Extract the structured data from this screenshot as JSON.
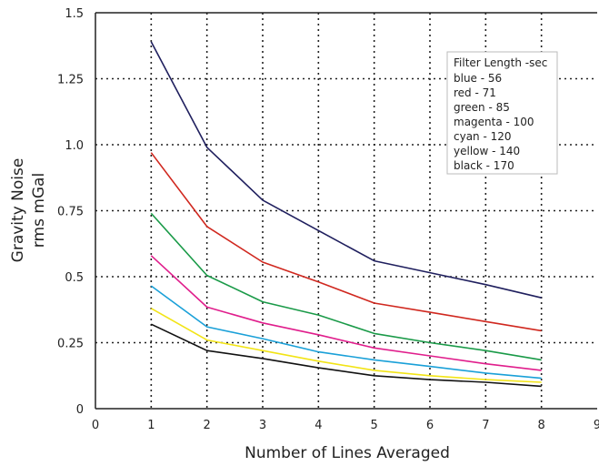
{
  "chart_data": {
    "type": "line",
    "title": "",
    "xlabel": "Number of Lines Averaged",
    "ylabel_line1": "Gravity Noise",
    "ylabel_line2": "rms mGal",
    "xlim": [
      0,
      9
    ],
    "ylim": [
      0,
      1.5
    ],
    "x_ticks": [
      "0",
      "1",
      "2",
      "3",
      "4",
      "5",
      "6",
      "7",
      "8",
      "9"
    ],
    "y_ticks": [
      "0",
      "0.25",
      "0.5",
      "0.75",
      "1.0",
      "1.25",
      "1.5"
    ],
    "y_tick_values": [
      0,
      0.25,
      0.5,
      0.75,
      1.0,
      1.25,
      1.5
    ],
    "grid": true,
    "legend_title": "Filter Length -sec",
    "legend_position": "top-right",
    "legend": [
      "blue - 56",
      "red - 71",
      "green - 85",
      "magenta - 100",
      "cyan - 120",
      "yellow - 140",
      "black - 170"
    ],
    "x": [
      1,
      2,
      3,
      4,
      5,
      6,
      7,
      8
    ],
    "series": [
      {
        "color": "#1f1f5e",
        "values": [
          1.39,
          0.99,
          0.79,
          0.675,
          0.56,
          0.515,
          0.47,
          0.42
        ]
      },
      {
        "color": "#d0281f",
        "values": [
          0.97,
          0.69,
          0.555,
          0.48,
          0.4,
          0.365,
          0.33,
          0.295
        ]
      },
      {
        "color": "#1a9a48",
        "values": [
          0.74,
          0.505,
          0.405,
          0.355,
          0.285,
          0.25,
          0.22,
          0.185
        ]
      },
      {
        "color": "#e01e8c",
        "values": [
          0.58,
          0.385,
          0.325,
          0.28,
          0.23,
          0.2,
          0.17,
          0.145
        ]
      },
      {
        "color": "#1aa0d8",
        "values": [
          0.465,
          0.31,
          0.265,
          0.215,
          0.185,
          0.16,
          0.135,
          0.115
        ]
      },
      {
        "color": "#f2e416",
        "values": [
          0.38,
          0.26,
          0.22,
          0.18,
          0.145,
          0.125,
          0.11,
          0.1
        ]
      },
      {
        "color": "#111111",
        "values": [
          0.32,
          0.22,
          0.19,
          0.155,
          0.125,
          0.11,
          0.1,
          0.085
        ]
      }
    ]
  }
}
